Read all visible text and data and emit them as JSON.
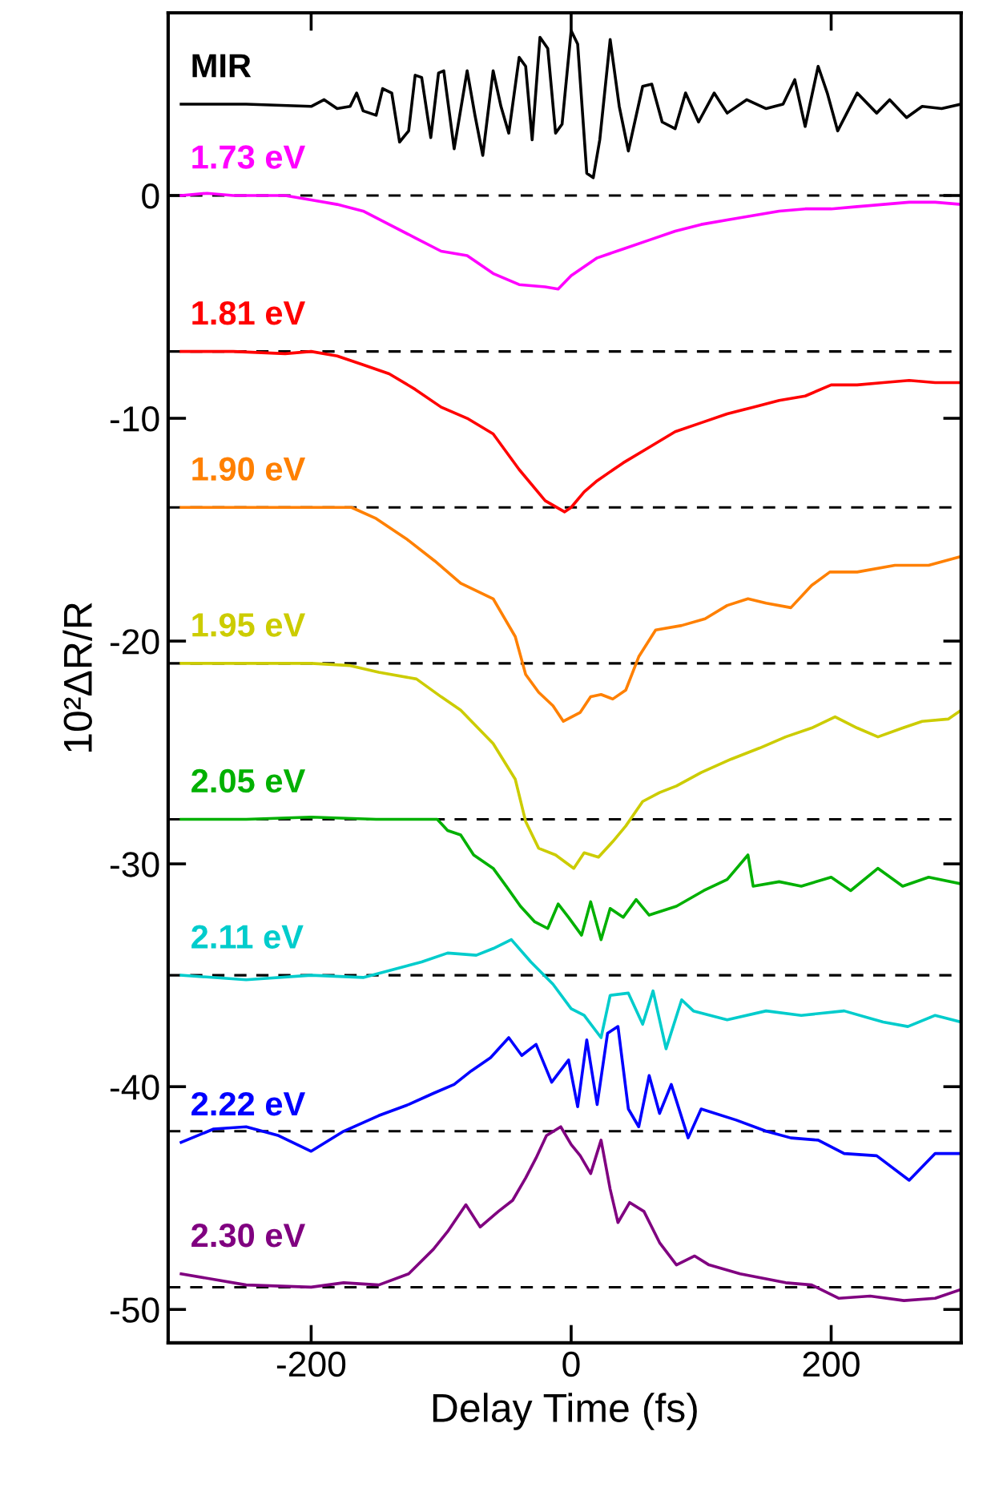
{
  "chart_data": {
    "type": "line",
    "xlabel": "Delay Time (fs)",
    "ylabel": "10²ΔR/R",
    "xlim": [
      -310,
      300
    ],
    "xticks": [
      -200,
      0,
      200
    ],
    "ylim": [
      -51.5,
      8.2
    ],
    "yticks": [
      0,
      -10,
      -20,
      -30,
      -40,
      -50
    ],
    "grid": false,
    "legend": false,
    "marker": "none",
    "line_style": "solid",
    "ref_lines": [
      {
        "axis": "y",
        "value": 0,
        "color": "#000000",
        "line_style": "dashed"
      },
      {
        "axis": "y",
        "value": -7,
        "color": "#000000",
        "line_style": "dashed"
      },
      {
        "axis": "y",
        "value": -14,
        "color": "#000000",
        "line_style": "dashed"
      },
      {
        "axis": "y",
        "value": -21,
        "color": "#000000",
        "line_style": "dashed"
      },
      {
        "axis": "y",
        "value": -28,
        "color": "#000000",
        "line_style": "dashed"
      },
      {
        "axis": "y",
        "value": -35,
        "color": "#000000",
        "line_style": "dashed"
      },
      {
        "axis": "y",
        "value": -42,
        "color": "#000000",
        "line_style": "dashed"
      },
      {
        "axis": "y",
        "value": -49,
        "color": "#000000",
        "line_style": "dashed"
      }
    ],
    "series": [
      {
        "name": "MIR",
        "color": "#000000",
        "x": [
          -300,
          -250,
          -200,
          -190,
          -180,
          -170,
          -165,
          -160,
          -150,
          -145,
          -138,
          -132,
          -125,
          -120,
          -115,
          -108,
          -102,
          -98,
          -90,
          -80,
          -74,
          -68,
          -60,
          -54,
          -48,
          -40,
          -35,
          -30,
          -24,
          -18,
          -12,
          -7,
          0,
          5,
          12,
          17,
          22,
          30,
          37,
          44,
          55,
          62,
          70,
          80,
          88,
          98,
          110,
          120,
          135,
          150,
          163,
          172,
          180,
          190,
          197,
          205,
          220,
          235,
          245,
          258,
          270,
          285,
          300
        ],
        "values": [
          4.1,
          4.1,
          4.0,
          4.3,
          3.9,
          4.0,
          4.6,
          3.8,
          3.6,
          4.8,
          4.6,
          2.4,
          2.9,
          5.4,
          5.3,
          2.6,
          5.5,
          5.6,
          2.1,
          5.6,
          3.6,
          1.8,
          5.6,
          4.0,
          2.8,
          6.2,
          5.8,
          2.5,
          7.1,
          6.6,
          2.8,
          3.2,
          7.4,
          6.8,
          1.0,
          0.8,
          2.5,
          7.0,
          4.0,
          2.0,
          4.9,
          5.0,
          3.3,
          3.0,
          4.6,
          3.3,
          4.6,
          3.7,
          4.3,
          3.9,
          4.1,
          5.2,
          3.1,
          5.8,
          4.6,
          2.9,
          4.6,
          3.7,
          4.3,
          3.5,
          4.0,
          3.9,
          4.1
        ]
      },
      {
        "name": "1.73 eV",
        "color": "#ff00ff",
        "x": [
          -300,
          -280,
          -260,
          -240,
          -220,
          -200,
          -180,
          -160,
          -140,
          -120,
          -100,
          -80,
          -60,
          -40,
          -20,
          -10,
          0,
          20,
          40,
          60,
          80,
          100,
          120,
          140,
          160,
          180,
          200,
          220,
          240,
          260,
          280,
          300
        ],
        "values": [
          0,
          0.1,
          0,
          0,
          0,
          -0.2,
          -0.4,
          -0.7,
          -1.3,
          -1.9,
          -2.5,
          -2.7,
          -3.5,
          -4.0,
          -4.1,
          -4.2,
          -3.6,
          -2.8,
          -2.4,
          -2.0,
          -1.6,
          -1.3,
          -1.1,
          -0.9,
          -0.7,
          -0.6,
          -0.6,
          -0.5,
          -0.4,
          -0.3,
          -0.3,
          -0.4
        ]
      },
      {
        "name": "1.81 eV",
        "color": "#ff0000",
        "x": [
          -300,
          -260,
          -220,
          -200,
          -180,
          -160,
          -140,
          -120,
          -100,
          -80,
          -60,
          -40,
          -20,
          -5,
          0,
          10,
          20,
          40,
          60,
          80,
          100,
          120,
          140,
          160,
          180,
          200,
          220,
          240,
          260,
          280,
          300
        ],
        "values": [
          -7,
          -7.0,
          -7.1,
          -7.0,
          -7.2,
          -7.6,
          -8.0,
          -8.7,
          -9.5,
          -10.0,
          -10.7,
          -12.3,
          -13.7,
          -14.2,
          -14.0,
          -13.3,
          -12.8,
          -12.0,
          -11.3,
          -10.6,
          -10.2,
          -9.8,
          -9.5,
          -9.2,
          -9.0,
          -8.5,
          -8.5,
          -8.4,
          -8.3,
          -8.4,
          -8.4
        ]
      },
      {
        "name": "1.90 eV",
        "color": "#ff8000",
        "x": [
          -300,
          -250,
          -200,
          -169,
          -150,
          -127,
          -105,
          -85,
          -60,
          -43,
          -35,
          -25,
          -14,
          -6,
          7,
          15,
          23,
          32,
          42,
          52,
          65,
          85,
          103,
          120,
          136,
          150,
          169,
          185,
          199,
          220,
          249,
          275,
          300
        ],
        "values": [
          -14,
          -14.0,
          -14.0,
          -14.0,
          -14.5,
          -15.4,
          -16.4,
          -17.4,
          -18.1,
          -19.8,
          -21.5,
          -22.3,
          -22.9,
          -23.6,
          -23.2,
          -22.5,
          -22.4,
          -22.6,
          -22.2,
          -20.7,
          -19.5,
          -19.3,
          -19.0,
          -18.4,
          -18.1,
          -18.3,
          -18.5,
          -17.5,
          -16.9,
          -16.9,
          -16.6,
          -16.6,
          -16.2
        ]
      },
      {
        "name": "1.95 eV",
        "color": "#cccc00",
        "x": [
          -300,
          -250,
          -200,
          -170,
          -148,
          -119,
          -100,
          -85,
          -60,
          -43,
          -35,
          -25,
          -12,
          2,
          10,
          21,
          32,
          42,
          55,
          68,
          81,
          100,
          123,
          145,
          165,
          185,
          203,
          220,
          236,
          255,
          270,
          290,
          300
        ],
        "values": [
          -21,
          -21.0,
          -21.0,
          -21.1,
          -21.4,
          -21.7,
          -22.5,
          -23.1,
          -24.6,
          -26.2,
          -28.1,
          -29.3,
          -29.6,
          -30.2,
          -29.5,
          -29.7,
          -29.0,
          -28.3,
          -27.2,
          -26.8,
          -26.5,
          -25.9,
          -25.3,
          -24.8,
          -24.3,
          -23.9,
          -23.4,
          -23.9,
          -24.3,
          -23.9,
          -23.6,
          -23.5,
          -23.1
        ]
      },
      {
        "name": "2.05 eV",
        "color": "#00b000",
        "x": [
          -300,
          -250,
          -200,
          -150,
          -103,
          -95,
          -85,
          -75,
          -60,
          -50,
          -39,
          -28,
          -18,
          -10,
          -2,
          8,
          15,
          23,
          30,
          40,
          50,
          60,
          81,
          102,
          120,
          136,
          140,
          160,
          177,
          200,
          215,
          236,
          255,
          275,
          300
        ],
        "values": [
          -28,
          -28.0,
          -27.9,
          -28.0,
          -28.0,
          -28.5,
          -28.7,
          -29.6,
          -30.2,
          -31.0,
          -31.9,
          -32.6,
          -32.9,
          -31.8,
          -32.4,
          -33.2,
          -31.7,
          -33.4,
          -32.0,
          -32.4,
          -31.6,
          -32.3,
          -31.9,
          -31.2,
          -30.7,
          -29.6,
          -31.0,
          -30.8,
          -31.0,
          -30.6,
          -31.2,
          -30.2,
          -31.0,
          -30.6,
          -30.9
        ]
      },
      {
        "name": "2.11 eV",
        "color": "#00cccc",
        "x": [
          -300,
          -250,
          -200,
          -160,
          -115,
          -95,
          -73,
          -60,
          -46,
          -31,
          -14,
          0,
          10,
          23,
          30,
          44,
          55,
          63,
          73,
          85,
          94,
          120,
          150,
          177,
          210,
          240,
          259,
          280,
          300
        ],
        "values": [
          -35,
          -35.2,
          -35.0,
          -35.1,
          -34.4,
          -34.0,
          -34.1,
          -33.8,
          -33.4,
          -34.4,
          -35.4,
          -36.5,
          -36.8,
          -37.8,
          -35.9,
          -35.8,
          -37.2,
          -35.7,
          -38.3,
          -36.1,
          -36.6,
          -37.0,
          -36.6,
          -36.8,
          -36.6,
          -37.1,
          -37.3,
          -36.8,
          -37.1
        ]
      },
      {
        "name": "2.22 eV",
        "color": "#0000ff",
        "x": [
          -300,
          -275,
          -250,
          -225,
          -200,
          -175,
          -148,
          -125,
          -106,
          -90,
          -77,
          -62,
          -48,
          -38,
          -27,
          -15,
          -2,
          5,
          12,
          20,
          28,
          36,
          44,
          52,
          60,
          68,
          77,
          90,
          100,
          127,
          150,
          169,
          190,
          210,
          235,
          260,
          280,
          300
        ],
        "values": [
          -42.5,
          -41.9,
          -41.8,
          -42.2,
          -42.9,
          -42.0,
          -41.3,
          -40.8,
          -40.3,
          -39.9,
          -39.3,
          -38.7,
          -37.8,
          -38.6,
          -38.1,
          -39.8,
          -38.8,
          -40.9,
          -37.9,
          -40.8,
          -37.6,
          -37.3,
          -41.0,
          -41.8,
          -39.5,
          -41.2,
          -39.9,
          -42.3,
          -41.0,
          -41.5,
          -42.0,
          -42.3,
          -42.4,
          -43.0,
          -43.1,
          -44.2,
          -43.0,
          -43.0
        ]
      },
      {
        "name": "2.30 eV",
        "color": "#800080",
        "x": [
          -300,
          -250,
          -200,
          -175,
          -148,
          -125,
          -106,
          -95,
          -81,
          -70,
          -56,
          -45,
          -35,
          -27,
          -19,
          -8,
          0,
          7,
          15,
          23,
          30,
          36,
          45,
          56,
          68,
          81,
          95,
          106,
          130,
          165,
          185,
          206,
          230,
          256,
          280,
          300
        ],
        "values": [
          -48.4,
          -48.9,
          -49.0,
          -48.8,
          -48.9,
          -48.4,
          -47.3,
          -46.5,
          -45.3,
          -46.3,
          -45.6,
          -45.1,
          -44.1,
          -43.2,
          -42.2,
          -41.8,
          -42.6,
          -43.1,
          -43.9,
          -42.4,
          -44.6,
          -46.1,
          -45.2,
          -45.6,
          -47.0,
          -48.0,
          -47.6,
          -48.0,
          -48.4,
          -48.8,
          -48.9,
          -49.5,
          -49.4,
          -49.6,
          -49.5,
          -49.1
        ]
      }
    ]
  }
}
